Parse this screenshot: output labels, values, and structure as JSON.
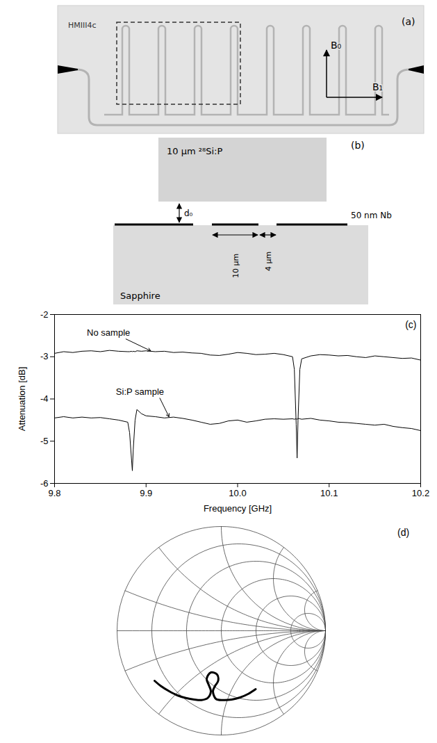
{
  "photo": {
    "panel_label": "(a)",
    "chip_label": "HMIII4c",
    "field_labels": [
      "B₀",
      "B₁"
    ]
  },
  "cross_section": {
    "panel_label": "(b)",
    "sample_label": "10 μm ²⁸Si:P",
    "gap_label": "d₀",
    "film_label": "50 nm Nb",
    "width_labels": [
      "10 μm",
      "4 μm"
    ],
    "substrate_label": "Sapphire"
  },
  "chart_data": [
    {
      "type": "line",
      "panel_label": "(c)",
      "xlabel": "Frequency [GHz]",
      "ylabel": "Attenuation [dB]",
      "x": [
        9.8,
        9.81,
        9.82,
        9.83,
        9.84,
        9.85,
        9.86,
        9.87,
        9.88,
        9.882,
        9.884,
        9.885,
        9.886,
        9.888,
        9.89,
        9.895,
        9.9,
        9.91,
        9.92,
        9.93,
        9.94,
        9.95,
        9.96,
        9.97,
        9.98,
        9.99,
        10.0,
        10.01,
        10.02,
        10.03,
        10.04,
        10.05,
        10.06,
        10.062,
        10.064,
        10.065,
        10.066,
        10.068,
        10.07,
        10.08,
        10.09,
        10.1,
        10.11,
        10.12,
        10.13,
        10.14,
        10.15,
        10.16,
        10.17,
        10.18,
        10.19,
        10.2
      ],
      "series": [
        {
          "color": "#000000",
          "values": [
            -2.92,
            -2.88,
            -2.9,
            -2.87,
            -2.86,
            -2.88,
            -2.85,
            -2.87,
            -2.88,
            -2.88,
            -2.87,
            -2.88,
            -2.87,
            -2.88,
            -2.86,
            -2.87,
            -2.86,
            -2.88,
            -2.87,
            -2.9,
            -2.89,
            -2.91,
            -2.92,
            -2.96,
            -2.97,
            -2.94,
            -2.9,
            -2.92,
            -2.95,
            -2.94,
            -2.92,
            -2.95,
            -3.0,
            -3.3,
            -4.6,
            -5.4,
            -4.5,
            -3.3,
            -3.05,
            -2.98,
            -2.95,
            -2.96,
            -2.98,
            -2.97,
            -3.0,
            -3.02,
            -2.98,
            -3.0,
            -3.02,
            -3.04,
            -3.03,
            -3.08
          ]
        },
        {
          "color": "#000000",
          "values": [
            -4.45,
            -4.42,
            -4.45,
            -4.43,
            -4.45,
            -4.44,
            -4.47,
            -4.5,
            -4.55,
            -4.8,
            -5.4,
            -5.7,
            -5.2,
            -4.5,
            -4.25,
            -4.35,
            -4.4,
            -4.42,
            -4.45,
            -4.43,
            -4.46,
            -4.5,
            -4.55,
            -4.6,
            -4.58,
            -4.52,
            -4.5,
            -4.55,
            -4.52,
            -4.48,
            -4.47,
            -4.48,
            -4.47,
            -4.48,
            -4.47,
            -4.48,
            -4.46,
            -4.47,
            -4.48,
            -4.46,
            -4.5,
            -4.52,
            -4.55,
            -4.56,
            -4.58,
            -4.6,
            -4.62,
            -4.6,
            -4.65,
            -4.68,
            -4.7,
            -4.75
          ]
        }
      ],
      "annotations": [
        {
          "text": "No sample",
          "xy": [
            9.905,
            -2.86
          ],
          "xytext": [
            9.878,
            -2.58
          ]
        },
        {
          "text": "Si:P sample",
          "xy": [
            9.925,
            -4.42
          ],
          "xytext": [
            9.915,
            -3.98
          ]
        }
      ],
      "xlim": [
        9.8,
        10.2
      ],
      "xticks": [
        9.8,
        9.9,
        {
          "value": 10,
          "label": "10.0"
        },
        10.1,
        10.2
      ],
      "ylim": [
        -6,
        -2
      ],
      "yticks": [
        -6,
        -5,
        -4,
        -3,
        -2
      ],
      "grid": false
    },
    {
      "type": "smith",
      "panel_label": "(d)",
      "color": "#000000",
      "gamma_real": [
        -0.64,
        -0.58,
        -0.5,
        -0.42,
        -0.34,
        -0.26,
        -0.19,
        -0.13,
        -0.1,
        -0.12,
        -0.14,
        -0.1,
        -0.04,
        -0.03,
        -0.06,
        -0.08,
        -0.05,
        0.02,
        0.1,
        0.18,
        0.26,
        0.33
      ],
      "gamma_imag": [
        -0.48,
        -0.53,
        -0.58,
        -0.62,
        -0.645,
        -0.66,
        -0.665,
        -0.645,
        -0.58,
        -0.52,
        -0.46,
        -0.4,
        -0.42,
        -0.48,
        -0.53,
        -0.58,
        -0.655,
        -0.665,
        -0.66,
        -0.64,
        -0.605,
        -0.56
      ],
      "tick_labels": false
    }
  ]
}
